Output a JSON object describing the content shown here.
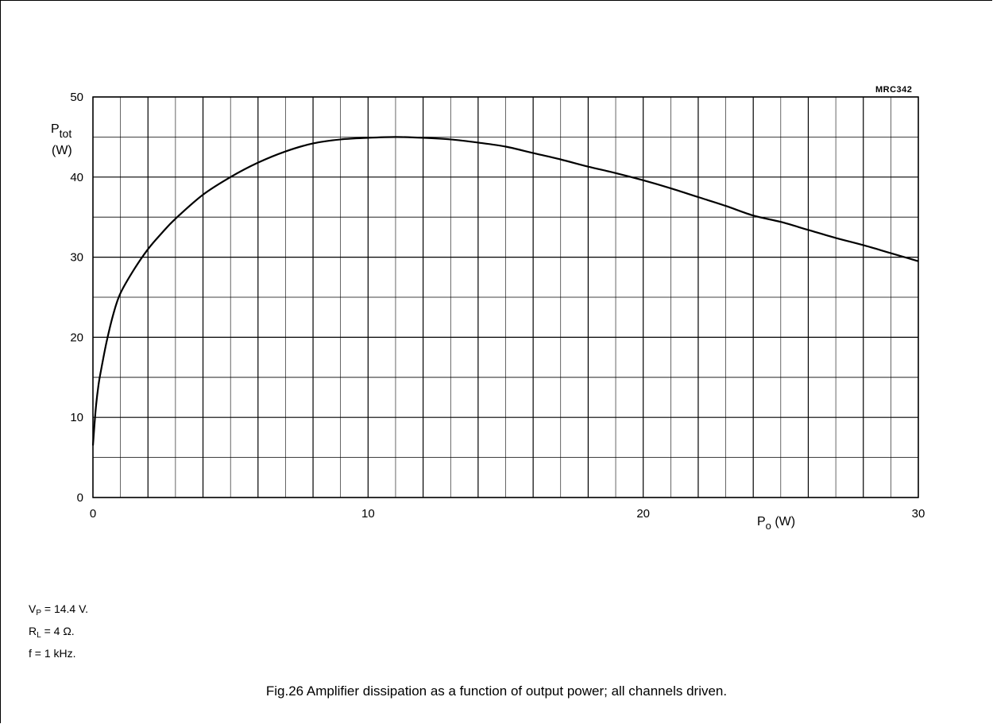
{
  "figure": {
    "code": "MRC342",
    "caption": "Fig.26  Amplifier dissipation as a function of output power; all channels driven."
  },
  "conditions": [
    {
      "main": "V",
      "sub": "P",
      "rest": " = 14.4 V."
    },
    {
      "main": "R",
      "sub": "L",
      "rest": " = 4 Ω."
    },
    {
      "main": "f = 1 kHz.",
      "sub": "",
      "rest": ""
    }
  ],
  "chart_data": {
    "type": "line",
    "title": "",
    "xlabel": {
      "main": "P",
      "sub": "o",
      "unit": " (W)"
    },
    "ylabel": {
      "main": "P",
      "sub": "tot",
      "unit": "(W)"
    },
    "xlim": [
      0,
      30
    ],
    "ylim": [
      0,
      50
    ],
    "xticks": [
      "0",
      "10",
      "20",
      "30"
    ],
    "yticks": [
      "0",
      "10",
      "20",
      "30",
      "40",
      "50"
    ],
    "grid": true,
    "series": [
      {
        "x": [
          0,
          0.1,
          0.2,
          0.3,
          0.5,
          0.75,
          1,
          1.5,
          2,
          2.5,
          3,
          4,
          5,
          6,
          7,
          8,
          9,
          10,
          11,
          12,
          13,
          14,
          15,
          16,
          17,
          18,
          19,
          20,
          21,
          22,
          23,
          24,
          25,
          26,
          27,
          28,
          29,
          30
        ],
        "y": [
          6.5,
          11,
          14,
          16,
          19.5,
          23,
          25.5,
          28.5,
          31,
          33,
          34.8,
          37.8,
          40,
          41.8,
          43.2,
          44.2,
          44.7,
          44.9,
          45,
          44.9,
          44.7,
          44.3,
          43.8,
          43,
          42.2,
          41.3,
          40.5,
          39.6,
          38.6,
          37.5,
          36.4,
          35.2,
          34.4,
          33.4,
          32.4,
          31.5,
          30.5,
          29.5
        ]
      }
    ]
  }
}
